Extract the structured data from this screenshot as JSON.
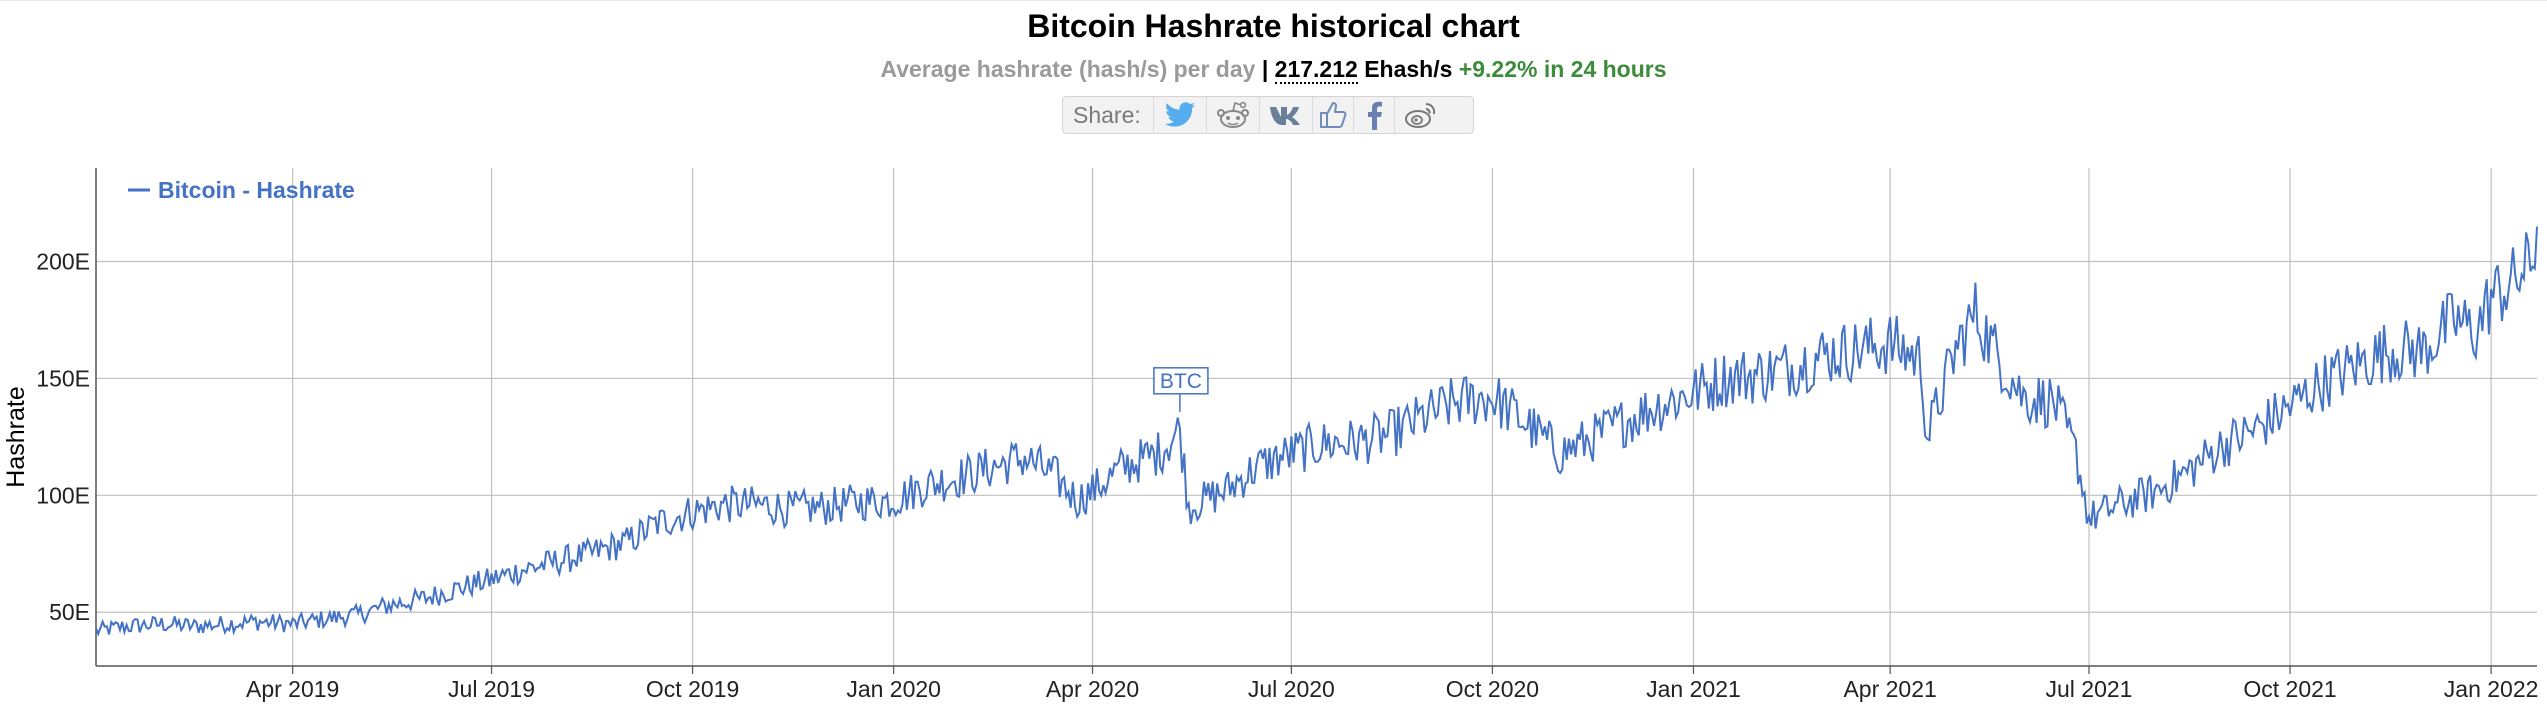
{
  "header": {
    "title": "Bitcoin Hashrate historical chart",
    "subtitle_prefix": "Average hashrate (hash/s) per day",
    "subtitle_sep": "|",
    "current_value": "217.212",
    "unit": "Ehash/s",
    "change": "+9.22% in 24 hours"
  },
  "share": {
    "label": "Share:",
    "buttons": [
      "twitter-icon",
      "reddit-icon",
      "vk-icon",
      "like-icon",
      "facebook-icon",
      "weibo-icon"
    ]
  },
  "colors": {
    "line": "#4472c4",
    "change_positive": "#3c8c3c",
    "twitter": "#55acee",
    "grid": "#c0c0c0"
  },
  "chart_data": {
    "type": "line",
    "title": "",
    "xlabel": "",
    "ylabel": "Hashrate",
    "legend": {
      "label": "Bitcoin - Hashrate",
      "position": "top-left"
    },
    "x_range": [
      "2019-01-01",
      "2022-01-22"
    ],
    "ylim": [
      27,
      240
    ],
    "y_ticks": [
      {
        "value": 50,
        "label": "50E"
      },
      {
        "value": 100,
        "label": "100E"
      },
      {
        "value": 150,
        "label": "150E"
      },
      {
        "value": 200,
        "label": "200E"
      }
    ],
    "x_ticks": [
      {
        "date": "2019-04-01",
        "label": "Apr 2019"
      },
      {
        "date": "2019-07-01",
        "label": "Jul 2019"
      },
      {
        "date": "2019-10-01",
        "label": "Oct 2019"
      },
      {
        "date": "2020-01-01",
        "label": "Jan 2020"
      },
      {
        "date": "2020-04-01",
        "label": "Apr 2020"
      },
      {
        "date": "2020-07-01",
        "label": "Jul 2020"
      },
      {
        "date": "2020-10-01",
        "label": "Oct 2020"
      },
      {
        "date": "2021-01-01",
        "label": "Jan 2021"
      },
      {
        "date": "2021-04-01",
        "label": "Apr 2021"
      },
      {
        "date": "2021-07-01",
        "label": "Jul 2021"
      },
      {
        "date": "2021-10-01",
        "label": "Oct 2021"
      },
      {
        "date": "2022-01-01",
        "label": "Jan 2022"
      }
    ],
    "grid": true,
    "annotation": {
      "label": "BTC",
      "date": "2020-05-11",
      "value": 140
    },
    "series": [
      {
        "name": "Bitcoin - Hashrate",
        "points": [
          [
            "2019-01-01",
            42
          ],
          [
            "2019-01-15",
            44
          ],
          [
            "2019-02-01",
            45
          ],
          [
            "2019-02-15",
            44
          ],
          [
            "2019-03-01",
            45
          ],
          [
            "2019-03-15",
            46
          ],
          [
            "2019-04-01",
            45
          ],
          [
            "2019-04-15",
            47
          ],
          [
            "2019-05-01",
            49
          ],
          [
            "2019-05-15",
            53
          ],
          [
            "2019-06-01",
            56
          ],
          [
            "2019-06-15",
            60
          ],
          [
            "2019-07-01",
            64
          ],
          [
            "2019-07-15",
            68
          ],
          [
            "2019-08-01",
            72
          ],
          [
            "2019-08-15",
            75
          ],
          [
            "2019-09-01",
            80
          ],
          [
            "2019-09-15",
            88
          ],
          [
            "2019-10-01",
            93
          ],
          [
            "2019-10-15",
            96
          ],
          [
            "2019-11-01",
            96
          ],
          [
            "2019-11-15",
            94
          ],
          [
            "2019-12-01",
            95
          ],
          [
            "2019-12-15",
            97
          ],
          [
            "2020-01-01",
            98
          ],
          [
            "2020-01-15",
            104
          ],
          [
            "2020-02-01",
            108
          ],
          [
            "2020-02-15",
            112
          ],
          [
            "2020-03-01",
            116
          ],
          [
            "2020-03-15",
            108
          ],
          [
            "2020-03-25",
            98
          ],
          [
            "2020-04-01",
            102
          ],
          [
            "2020-04-15",
            112
          ],
          [
            "2020-05-01",
            118
          ],
          [
            "2020-05-11",
            128
          ],
          [
            "2020-05-15",
            95
          ],
          [
            "2020-06-01",
            102
          ],
          [
            "2020-06-15",
            112
          ],
          [
            "2020-07-01",
            118
          ],
          [
            "2020-07-15",
            122
          ],
          [
            "2020-08-01",
            123
          ],
          [
            "2020-08-15",
            126
          ],
          [
            "2020-09-01",
            134
          ],
          [
            "2020-09-15",
            140
          ],
          [
            "2020-10-01",
            142
          ],
          [
            "2020-10-15",
            132
          ],
          [
            "2020-11-01",
            118
          ],
          [
            "2020-11-15",
            124
          ],
          [
            "2020-12-01",
            132
          ],
          [
            "2020-12-15",
            138
          ],
          [
            "2021-01-01",
            144
          ],
          [
            "2021-01-15",
            150
          ],
          [
            "2021-02-01",
            152
          ],
          [
            "2021-02-15",
            155
          ],
          [
            "2021-03-01",
            160
          ],
          [
            "2021-03-15",
            162
          ],
          [
            "2021-04-01",
            165
          ],
          [
            "2021-04-15",
            158
          ],
          [
            "2021-04-18",
            125
          ],
          [
            "2021-05-01",
            162
          ],
          [
            "2021-05-10",
            178
          ],
          [
            "2021-05-20",
            160
          ],
          [
            "2021-06-01",
            142
          ],
          [
            "2021-06-15",
            140
          ],
          [
            "2021-06-25",
            118
          ],
          [
            "2021-07-01",
            90
          ],
          [
            "2021-07-15",
            96
          ],
          [
            "2021-08-01",
            102
          ],
          [
            "2021-08-15",
            110
          ],
          [
            "2021-09-01",
            122
          ],
          [
            "2021-09-15",
            128
          ],
          [
            "2021-10-01",
            138
          ],
          [
            "2021-10-15",
            148
          ],
          [
            "2021-11-01",
            156
          ],
          [
            "2021-11-15",
            162
          ],
          [
            "2021-12-01",
            162
          ],
          [
            "2021-12-15",
            175
          ],
          [
            "2021-12-25",
            170
          ],
          [
            "2022-01-01",
            185
          ],
          [
            "2022-01-10",
            190
          ],
          [
            "2022-01-20",
            200
          ],
          [
            "2022-01-22",
            217
          ]
        ]
      }
    ]
  }
}
